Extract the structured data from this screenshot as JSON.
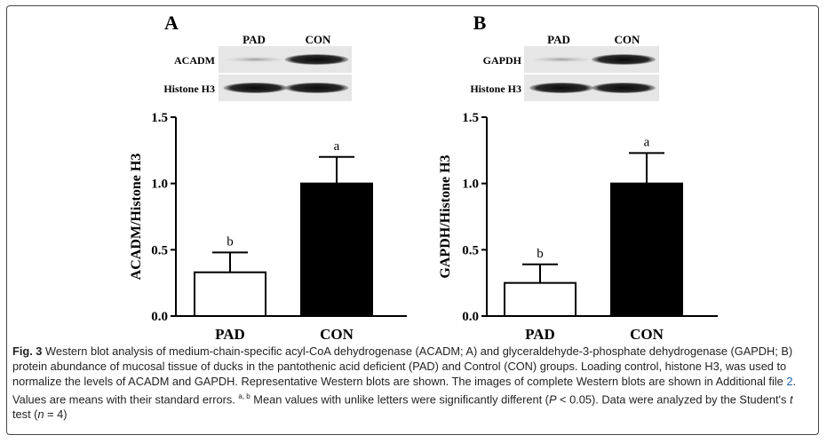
{
  "panels": [
    {
      "label": "A",
      "lane_labels": [
        "PAD",
        "CON"
      ],
      "blot_labels": [
        "ACADM",
        "Histone H3"
      ]
    },
    {
      "label": "B",
      "lane_labels": [
        "PAD",
        "CON"
      ],
      "blot_labels": [
        "GAPDH",
        "Histone H3"
      ]
    }
  ],
  "chart_data": [
    {
      "type": "bar",
      "categories": [
        "PAD",
        "CON"
      ],
      "values": [
        0.33,
        1.0
      ],
      "errors": [
        0.15,
        0.2
      ],
      "significance_letters": [
        "b",
        "a"
      ],
      "bar_colors": [
        "#ffffff",
        "#000000"
      ],
      "ylabel": "ACADM/Histone H3",
      "yticks": [
        "0.0",
        "0.5",
        "1.0",
        "1.5"
      ],
      "ylim": [
        0,
        1.5
      ]
    },
    {
      "type": "bar",
      "categories": [
        "PAD",
        "CON"
      ],
      "values": [
        0.25,
        1.0
      ],
      "errors": [
        0.14,
        0.23
      ],
      "significance_letters": [
        "b",
        "a"
      ],
      "bar_colors": [
        "#ffffff",
        "#000000"
      ],
      "ylabel": "GAPDH/Histone H3",
      "yticks": [
        "0.0",
        "0.5",
        "1.0",
        "1.5"
      ],
      "ylim": [
        0,
        1.5
      ]
    }
  ],
  "caption": {
    "fig_label": "Fig. 3",
    "text1": " Western blot analysis of medium-chain-specific acyl-CoA dehydrogenase (ACADM; A) and glyceraldehyde-3-phosphate dehydrogenase (GAPDH; B) protein abundance of mucosal tissue of ducks in the pantothenic acid deficient (PAD) and Control (CON) groups. Loading control, histone H3, was used to normalize the levels of ACADM and GAPDH. Representative Western blots are shown. The images of complete Western blots are shown in Additional file ",
    "link": "2",
    "text2": ". Values are means with their standard errors. ",
    "superscript": "a, b",
    "text3": " Mean values with unlike letters were significantly different (",
    "p_italic": "P",
    "text4": " < 0.05). Data were analyzed by the Student's ",
    "t_italic": "t",
    "text5": " test (",
    "n_italic": "n",
    "text6": " = 4)"
  }
}
